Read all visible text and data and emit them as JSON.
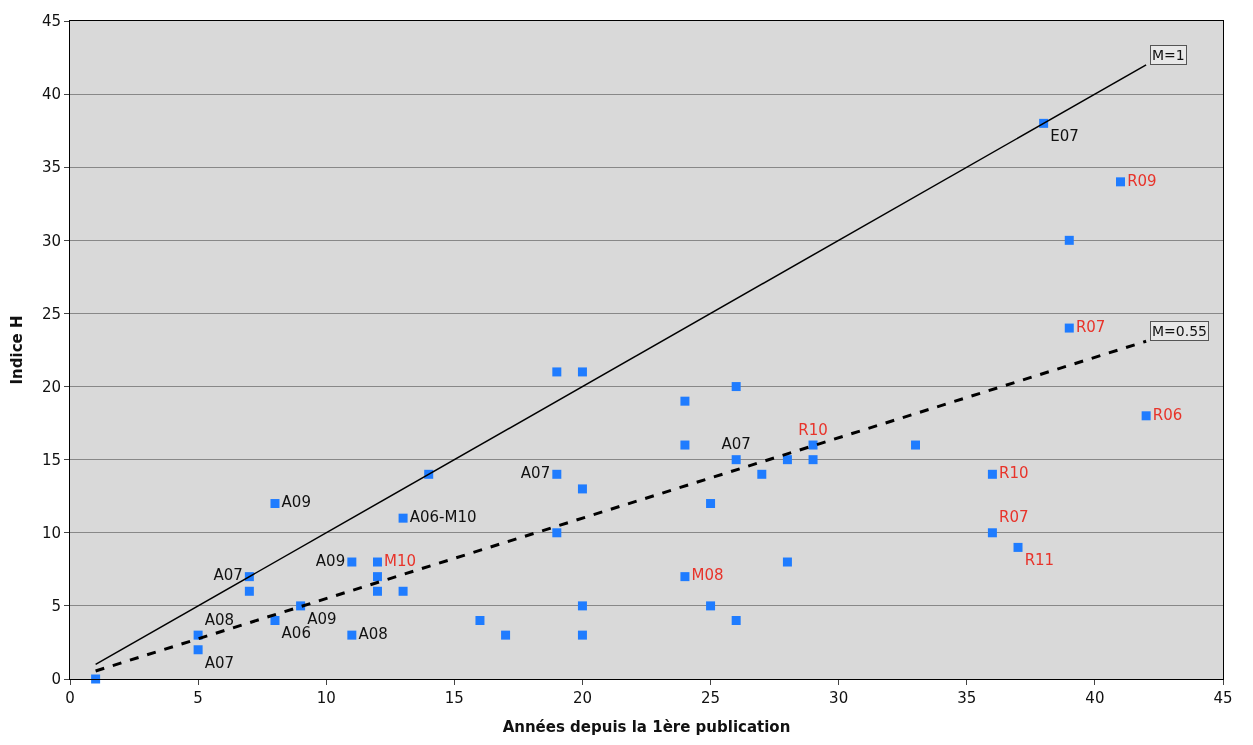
{
  "chart_data": {
    "type": "scatter",
    "xlabel": "Années depuis la 1ère publication",
    "ylabel": "Indice H",
    "xlim": [
      0,
      45
    ],
    "ylim": [
      0,
      45
    ],
    "xticks": [
      0,
      5,
      10,
      15,
      20,
      25,
      30,
      35,
      40,
      45
    ],
    "yticks": [
      0,
      5,
      10,
      15,
      20,
      25,
      30,
      35,
      40,
      45
    ],
    "grid": "y",
    "legend": false,
    "series": [
      {
        "color": "#1f7cff",
        "marker": "square",
        "x": [
          1,
          5,
          5,
          7,
          7,
          8,
          8,
          9,
          11,
          11,
          12,
          12,
          13,
          13,
          14,
          16,
          17,
          19,
          19,
          19,
          20,
          20,
          20,
          20,
          24,
          24,
          25,
          25,
          26,
          26,
          26,
          27,
          28,
          28,
          29,
          33,
          38,
          39
        ],
        "values": [
          0,
          3,
          2,
          7,
          6,
          12,
          4,
          5,
          8,
          3,
          8,
          6,
          11,
          6,
          14,
          4,
          3,
          21,
          14,
          10,
          21,
          13,
          5,
          3,
          19,
          16,
          12,
          5,
          20,
          15,
          4,
          14,
          15,
          8,
          15,
          16,
          38,
          30
        ],
        "value_labels": [
          null,
          "A08",
          "A07",
          "A07",
          null,
          "A09",
          "A06",
          "A09",
          "A09",
          "A08",
          null,
          null,
          "A06-M10",
          null,
          null,
          null,
          null,
          null,
          "A07",
          null,
          null,
          null,
          null,
          null,
          null,
          null,
          null,
          null,
          null,
          "A07",
          null,
          null,
          null,
          null,
          null,
          null,
          "E07",
          null
        ]
      },
      {
        "color": "#1f7cff",
        "marker": "square",
        "x": [
          12,
          24,
          29,
          36,
          36,
          37,
          39,
          41,
          42
        ],
        "values": [
          7,
          7,
          16,
          14,
          10,
          9,
          24,
          34,
          18
        ],
        "value_labels": [
          "M10",
          "M08",
          "R10",
          "R10",
          "R07",
          "R11",
          "R07",
          "R09",
          "R06"
        ]
      },
      {
        "type": "line",
        "name": "M=1",
        "color": "#000000",
        "marker": "none",
        "line_style": "solid",
        "x": [
          1,
          42
        ],
        "values": [
          1,
          42
        ]
      },
      {
        "type": "line",
        "name": "M=0.55",
        "color": "#000000",
        "marker": "none",
        "line_style": "dashed",
        "x": [
          1,
          42
        ],
        "values": [
          0.55,
          23.1
        ]
      }
    ]
  }
}
